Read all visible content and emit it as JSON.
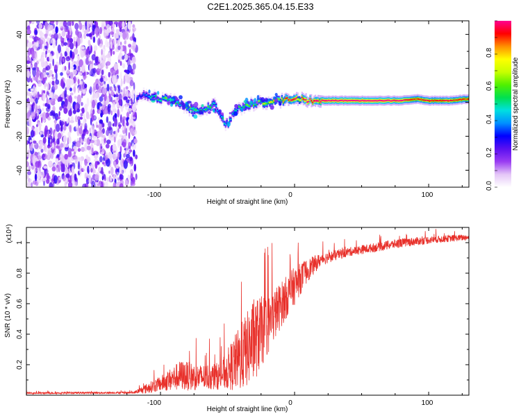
{
  "title": "C2E1.2025.365.04.15.E33",
  "chart_data": [
    {
      "type": "heatmap",
      "xlabel": "Height of straight line (km)",
      "ylabel": "Frequency (Hz)",
      "xlim": [
        -200,
        130
      ],
      "ylim": [
        -50,
        48
      ],
      "x_ticks": [
        "-100",
        "0",
        "100"
      ],
      "y_ticks": [
        "-40",
        "-20",
        "0",
        "20",
        "40"
      ],
      "noise_region": [
        -200,
        -118
      ],
      "ridge": [
        {
          "x": -118,
          "f": 3,
          "a": 0.3
        },
        {
          "x": -112,
          "f": 4,
          "a": 0.35
        },
        {
          "x": -105,
          "f": 3,
          "a": 0.45
        },
        {
          "x": -100,
          "f": 2,
          "a": 0.5
        },
        {
          "x": -95,
          "f": 2,
          "a": 0.55
        },
        {
          "x": -90,
          "f": 1,
          "a": 0.55
        },
        {
          "x": -85,
          "f": -1,
          "a": 0.5
        },
        {
          "x": -80,
          "f": -3,
          "a": 0.5
        },
        {
          "x": -75,
          "f": -4,
          "a": 0.55
        },
        {
          "x": -70,
          "f": -6,
          "a": 0.5
        },
        {
          "x": -65,
          "f": -3,
          "a": 0.5
        },
        {
          "x": -60,
          "f": -1,
          "a": 0.45
        },
        {
          "x": -57,
          "f": -5,
          "a": 0.4
        },
        {
          "x": -53,
          "f": -11,
          "a": 0.5
        },
        {
          "x": -50,
          "f": -13,
          "a": 0.4
        },
        {
          "x": -45,
          "f": -5,
          "a": 0.45
        },
        {
          "x": -40,
          "f": -3,
          "a": 0.5
        },
        {
          "x": -35,
          "f": -2,
          "a": 0.55
        },
        {
          "x": -30,
          "f": -1,
          "a": 0.55
        },
        {
          "x": -25,
          "f": 0,
          "a": 0.6
        },
        {
          "x": -20,
          "f": 0,
          "a": 0.7
        },
        {
          "x": -15,
          "f": 1,
          "a": 0.7
        },
        {
          "x": -10,
          "f": 1,
          "a": 0.75
        },
        {
          "x": -5,
          "f": 2,
          "a": 0.8
        },
        {
          "x": 0,
          "f": 2,
          "a": 0.85
        },
        {
          "x": 5,
          "f": 2,
          "a": 0.85
        },
        {
          "x": 10,
          "f": 1,
          "a": 0.9
        },
        {
          "x": 20,
          "f": 1,
          "a": 0.95
        },
        {
          "x": 40,
          "f": 1,
          "a": 1.0
        },
        {
          "x": 60,
          "f": 1,
          "a": 1.0
        },
        {
          "x": 80,
          "f": 1,
          "a": 0.95
        },
        {
          "x": 90,
          "f": 2,
          "a": 0.85
        },
        {
          "x": 100,
          "f": 1,
          "a": 0.9
        },
        {
          "x": 115,
          "f": 1,
          "a": 0.9
        },
        {
          "x": 130,
          "f": 2,
          "a": 0.85
        }
      ],
      "colorbar": {
        "label": "Normalized spectral amplitude",
        "ticks": [
          "0.0",
          "0.2",
          "0.4",
          "0.6",
          "0.8"
        ],
        "range": [
          0,
          1
        ],
        "colors": [
          "#ffffff",
          "#e4c6f7",
          "#9a3cf2",
          "#5a10f0",
          "#0000ff",
          "#0090ff",
          "#00e0e0",
          "#00e050",
          "#50f000",
          "#c8ff00",
          "#ffff00",
          "#ff9000",
          "#ff0000",
          "#ff0090"
        ]
      }
    },
    {
      "type": "line",
      "xlabel": "Height of straight line (km)",
      "ylabel": "SNR (10 * v/v)",
      "scale_label": "(x10⁴)",
      "xlim": [
        -200,
        130
      ],
      "ylim": [
        0,
        1.1
      ],
      "x_ticks": [
        "-100",
        "0",
        "100"
      ],
      "y_ticks": [
        "0.2",
        "0.4",
        "0.6",
        "0.8",
        "1"
      ],
      "color": "#e8302a",
      "envelope": [
        {
          "x": -200,
          "base": 0.012,
          "spread": 0.012
        },
        {
          "x": -120,
          "base": 0.015,
          "spread": 0.012
        },
        {
          "x": -112,
          "base": 0.03,
          "spread": 0.06
        },
        {
          "x": -100,
          "base": 0.06,
          "spread": 0.1
        },
        {
          "x": -85,
          "base": 0.1,
          "spread": 0.2
        },
        {
          "x": -70,
          "base": 0.09,
          "spread": 0.17
        },
        {
          "x": -55,
          "base": 0.1,
          "spread": 0.18
        },
        {
          "x": -40,
          "base": 0.18,
          "spread": 0.45
        },
        {
          "x": -30,
          "base": 0.28,
          "spread": 0.55
        },
        {
          "x": -20,
          "base": 0.4,
          "spread": 0.4
        },
        {
          "x": -10,
          "base": 0.55,
          "spread": 0.3
        },
        {
          "x": 0,
          "base": 0.68,
          "spread": 0.25
        },
        {
          "x": 10,
          "base": 0.8,
          "spread": 0.15
        },
        {
          "x": 20,
          "base": 0.88,
          "spread": 0.08
        },
        {
          "x": 40,
          "base": 0.93,
          "spread": 0.06
        },
        {
          "x": 60,
          "base": 0.96,
          "spread": 0.06
        },
        {
          "x": 80,
          "base": 0.99,
          "spread": 0.06
        },
        {
          "x": 100,
          "base": 1.01,
          "spread": 0.05
        },
        {
          "x": 130,
          "base": 1.03,
          "spread": 0.04
        }
      ]
    }
  ]
}
